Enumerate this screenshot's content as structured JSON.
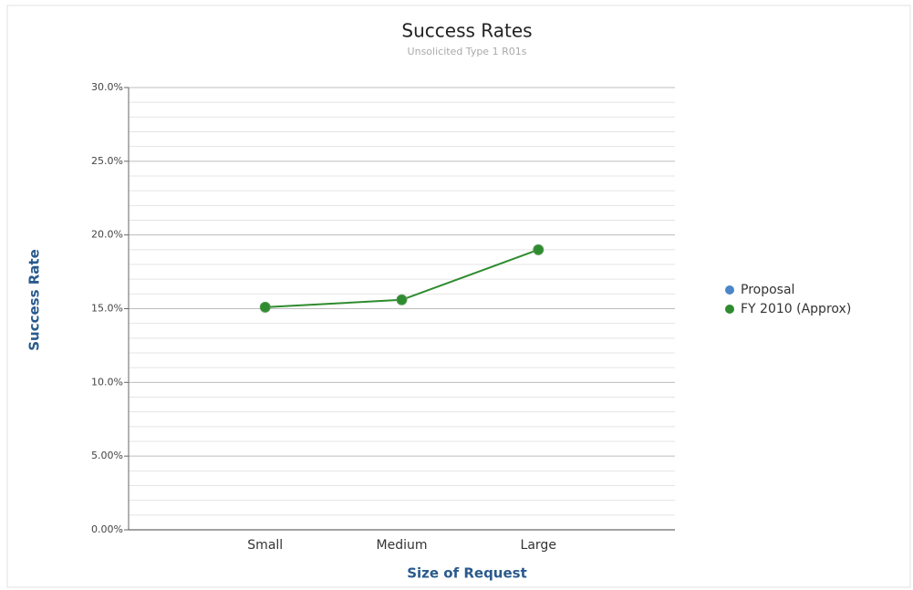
{
  "chart_data": {
    "type": "line",
    "title": "Success Rates",
    "subtitle": "Unsolicited Type 1 R01s",
    "x_label": "Size of Request",
    "y_label": "Success Rate",
    "categories": [
      "Small",
      "Medium",
      "Large"
    ],
    "series": [
      {
        "name": "Proposal",
        "color": "#4a86c8",
        "values": [
          null,
          null,
          null
        ]
      },
      {
        "name": "FY 2010 (Approx)",
        "color": "#2e8b2e",
        "values": [
          15.1,
          15.6,
          19.0
        ]
      }
    ],
    "ylim": [
      0,
      30
    ],
    "yticks": [
      {
        "value": 0,
        "label": "0.00%"
      },
      {
        "value": 5,
        "label": "5.00%"
      },
      {
        "value": 10,
        "label": "10.0%"
      },
      {
        "value": 15,
        "label": "15.0%"
      },
      {
        "value": 20,
        "label": "20.0%"
      },
      {
        "value": 25,
        "label": "25.0%"
      },
      {
        "value": 30,
        "label": "30.0%"
      }
    ],
    "minor_yticks": [
      1,
      2,
      3,
      4,
      6,
      7,
      8,
      9,
      11,
      12,
      13,
      14,
      16,
      17,
      18,
      19,
      21,
      22,
      23,
      24,
      26,
      27,
      28,
      29
    ],
    "grid": true,
    "legend": "right"
  }
}
